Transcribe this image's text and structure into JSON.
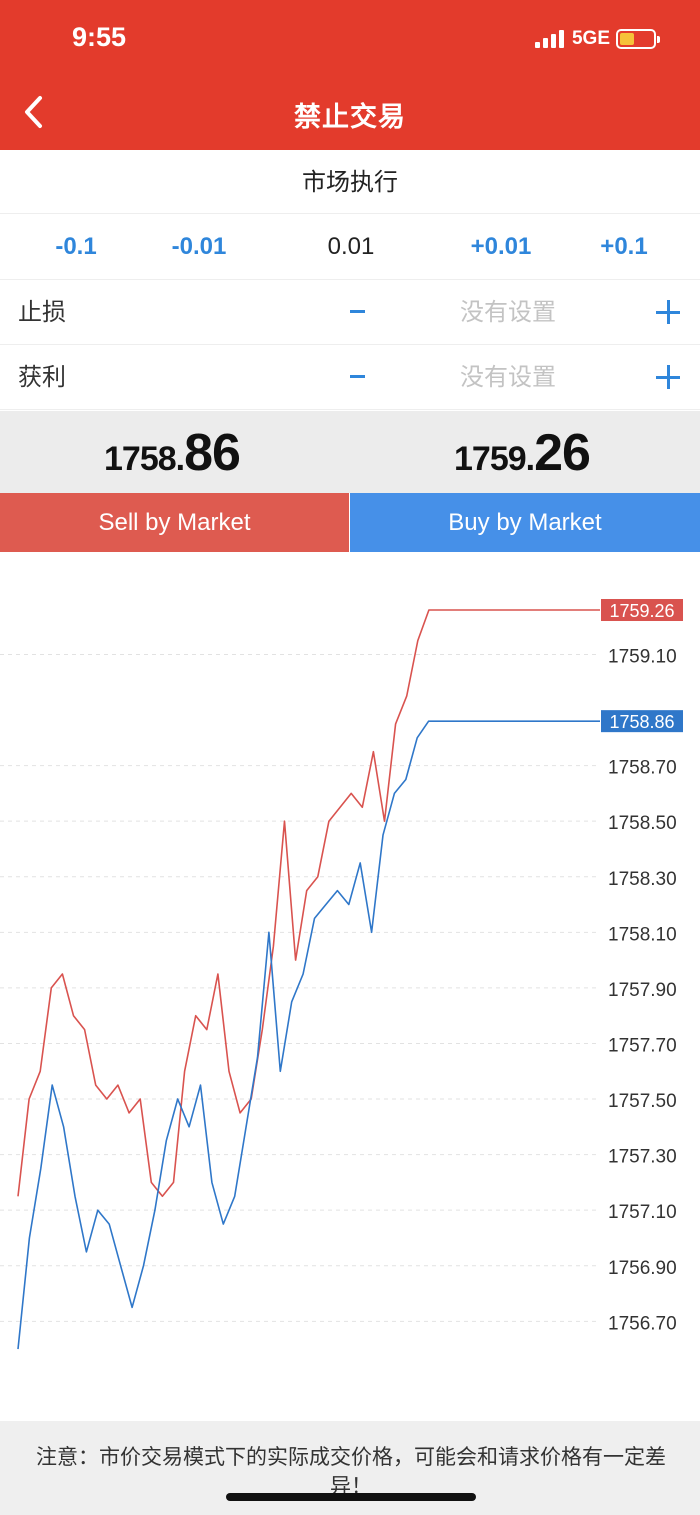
{
  "status_bar": {
    "time": "9:55",
    "network": "5GE",
    "battery_level": 0.45
  },
  "header": {
    "title": "禁止交易",
    "back_icon": "chevron-left-icon"
  },
  "execution_mode": "市场执行",
  "volume": {
    "steps": [
      "-0.1",
      "-0.01",
      "+0.01",
      "+0.1"
    ],
    "value": "0.01"
  },
  "stop_loss": {
    "label": "止损",
    "value": "没有设置"
  },
  "take_profit": {
    "label": "获利",
    "value": "没有设置"
  },
  "prices": {
    "sell": {
      "main": "1758.",
      "big": "86"
    },
    "buy": {
      "main": "1759.",
      "big": "26"
    }
  },
  "buttons": {
    "sell": "Sell by Market",
    "buy": "Buy by Market"
  },
  "chart_data": {
    "type": "line",
    "y_ticks": [
      "1759.10",
      "1758.70",
      "1758.50",
      "1758.30",
      "1758.10",
      "1757.90",
      "1757.70",
      "1757.50",
      "1757.30",
      "1757.10",
      "1756.90",
      "1756.70"
    ],
    "ylim": [
      1756.55,
      1759.35
    ],
    "grid": true,
    "series": [
      {
        "color": "#d9534f",
        "current_label": "1759.26",
        "current": 1759.26,
        "values": [
          1757.15,
          1757.5,
          1757.6,
          1757.9,
          1757.95,
          1757.8,
          1757.75,
          1757.55,
          1757.5,
          1757.55,
          1757.45,
          1757.5,
          1757.2,
          1757.15,
          1757.2,
          1757.6,
          1757.8,
          1757.75,
          1757.95,
          1757.6,
          1757.45,
          1757.5,
          1757.75,
          1758.05,
          1758.5,
          1758.0,
          1758.25,
          1758.3,
          1758.5,
          1758.55,
          1758.6,
          1758.55,
          1758.75,
          1758.5,
          1758.85,
          1758.95,
          1759.15,
          1759.26,
          1759.26
        ]
      },
      {
        "color": "#2f77c9",
        "current_label": "1758.86",
        "current": 1758.86,
        "values": [
          1756.6,
          1757.0,
          1757.25,
          1757.55,
          1757.4,
          1757.15,
          1756.95,
          1757.1,
          1757.05,
          1756.9,
          1756.75,
          1756.9,
          1757.1,
          1757.35,
          1757.5,
          1757.4,
          1757.55,
          1757.2,
          1757.05,
          1757.15,
          1757.4,
          1757.65,
          1758.1,
          1757.6,
          1757.85,
          1757.95,
          1758.15,
          1758.2,
          1758.25,
          1758.2,
          1758.35,
          1758.1,
          1758.45,
          1758.6,
          1758.65,
          1758.8,
          1758.86,
          1758.86
        ]
      }
    ]
  },
  "footer_note": "注意：市价交易模式下的实际成交价格，可能会和请求价格有一定差异！"
}
